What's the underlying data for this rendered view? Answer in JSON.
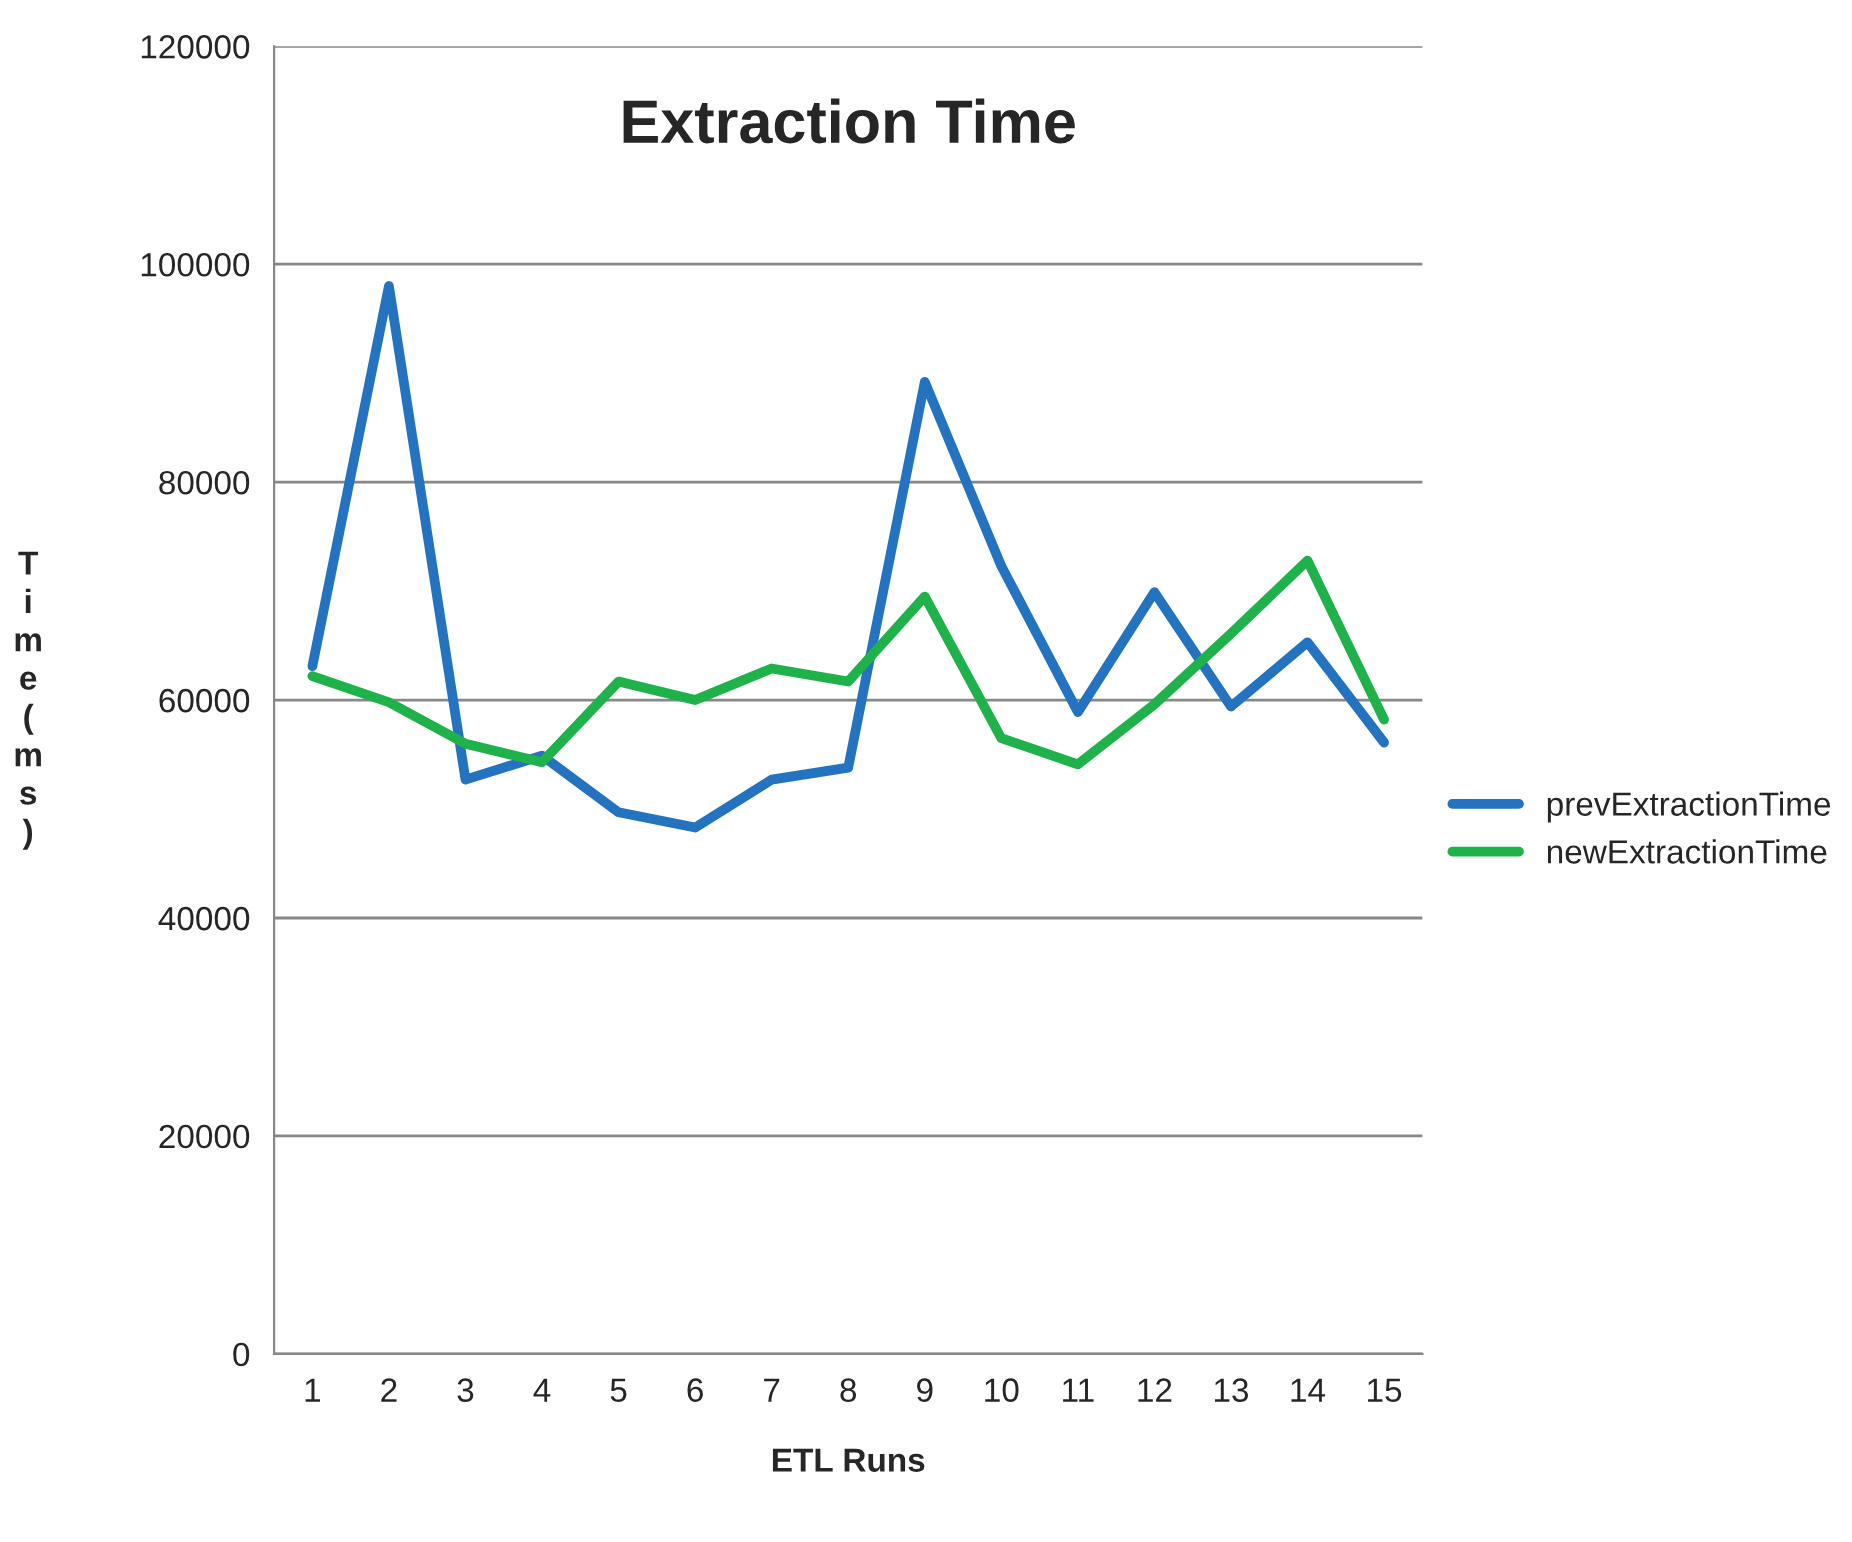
{
  "chart_data": {
    "type": "line",
    "title": "Extraction Time",
    "xlabel": "ETL Runs",
    "ylabel": "Time(ms)",
    "categories": [
      "1",
      "2",
      "3",
      "4",
      "5",
      "6",
      "7",
      "8",
      "9",
      "10",
      "11",
      "12",
      "13",
      "14",
      "15"
    ],
    "series": [
      {
        "name": "prevExtractionTime",
        "color": "#2473c0",
        "values": [
          63100,
          98000,
          52700,
          54900,
          49700,
          48300,
          52700,
          53800,
          89200,
          72300,
          58900,
          69900,
          59400,
          65300,
          56100
        ]
      },
      {
        "name": "newExtractionTime",
        "color": "#1fb24a",
        "values": [
          62200,
          59800,
          56000,
          54300,
          61700,
          60000,
          62900,
          61700,
          69500,
          56500,
          54100,
          59600,
          66100,
          72800,
          58200
        ]
      }
    ],
    "ylim": [
      0,
      120000
    ],
    "yticks": [
      0,
      20000,
      40000,
      60000,
      80000,
      100000,
      120000
    ],
    "grid": "y",
    "legend": "right",
    "marker": "none",
    "line_style": "solid"
  }
}
